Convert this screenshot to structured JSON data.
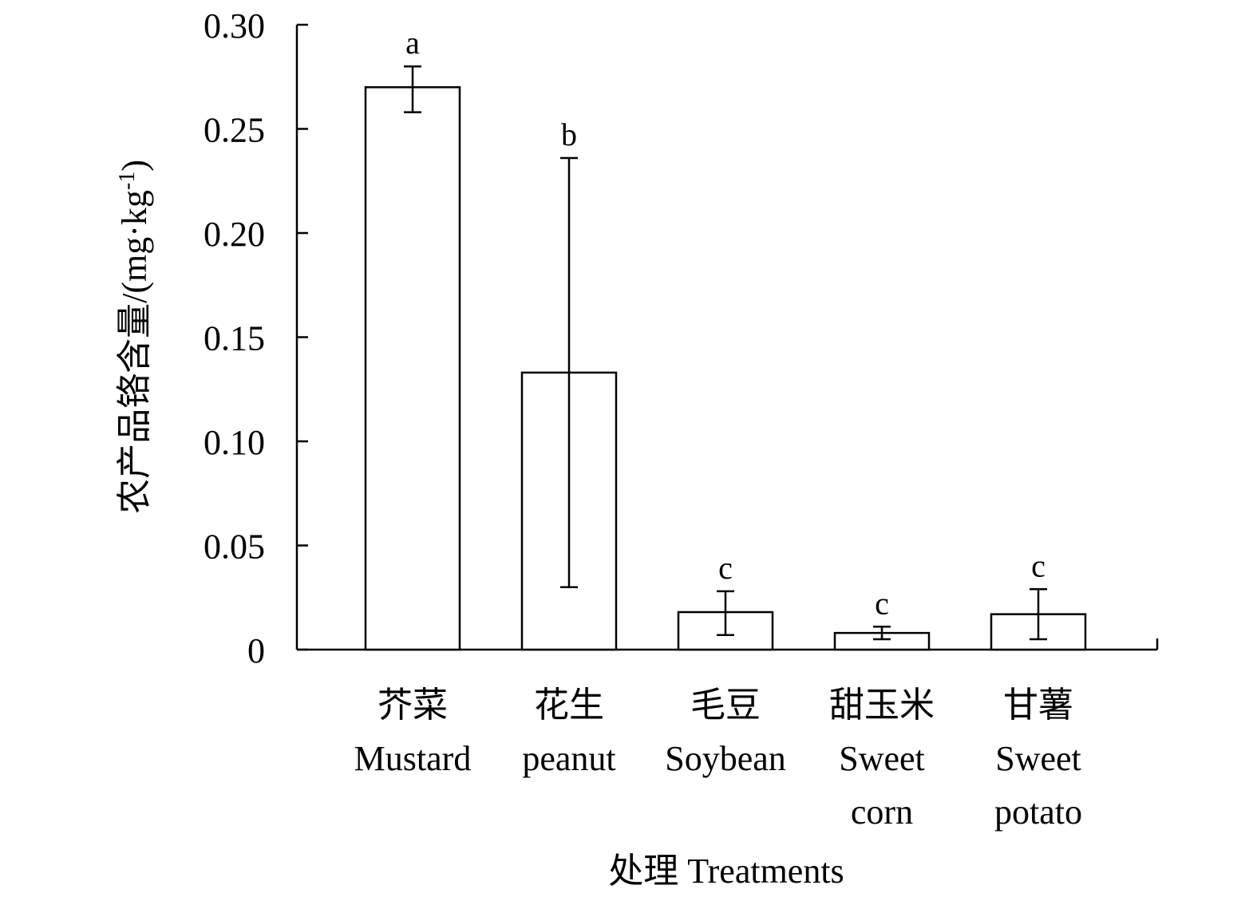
{
  "chart_data": {
    "type": "bar",
    "categories": [
      {
        "zh": "芥菜",
        "en": [
          "Mustard"
        ]
      },
      {
        "zh": "花生",
        "en": [
          "peanut"
        ]
      },
      {
        "zh": "毛豆",
        "en": [
          "Soybean"
        ]
      },
      {
        "zh": "甜玉米",
        "en": [
          "Sweet",
          "corn"
        ]
      },
      {
        "zh": "甘薯",
        "en": [
          "Sweet",
          "potato"
        ]
      }
    ],
    "values": [
      0.27,
      0.133,
      0.018,
      0.008,
      0.017
    ],
    "error_bars": [
      [
        0.258,
        0.28
      ],
      [
        0.03,
        0.236
      ],
      [
        0.007,
        0.028
      ],
      [
        0.005,
        0.011
      ],
      [
        0.005,
        0.029
      ]
    ],
    "significance_letters": [
      "a",
      "b",
      "c",
      "c",
      "c"
    ],
    "xlabel": "处理 Treatments",
    "ylabel": "农产品铬含量/(mg·kg-1)",
    "ylim": [
      0,
      0.3
    ],
    "yticks": [
      0,
      0.05,
      0.1,
      0.15,
      0.2,
      0.25,
      0.3
    ],
    "ytick_labels": [
      "0",
      "0.05",
      "0.10",
      "0.15",
      "0.20",
      "0.25",
      "0.30"
    ],
    "grid": false,
    "bar_fill": "#ffffff",
    "bar_stroke": "#000000"
  }
}
